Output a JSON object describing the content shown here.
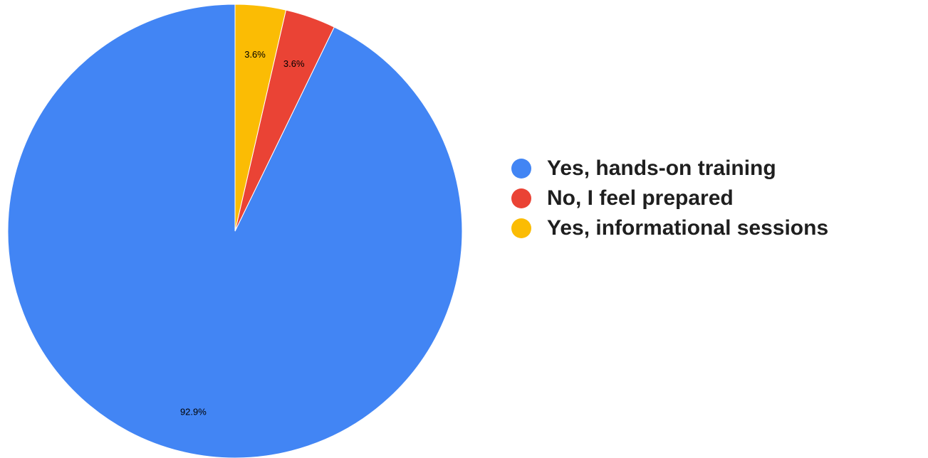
{
  "chart_data": {
    "type": "pie",
    "title": "",
    "categories": [
      "Yes, hands-on training",
      "No, I feel prepared",
      "Yes, informational sessions"
    ],
    "values": [
      92.9,
      3.6,
      3.6
    ],
    "labels": [
      "92.9%",
      "3.6%",
      "3.6%"
    ],
    "colors": [
      "#4285f4",
      "#ea4335",
      "#fbbc04"
    ],
    "start_angle_deg": 0,
    "direction": "counterclockwise",
    "legend": {
      "placement": "right",
      "entries": [
        "Yes, hands-on training",
        "No, I feel prepared",
        "Yes, informational sessions"
      ]
    }
  }
}
